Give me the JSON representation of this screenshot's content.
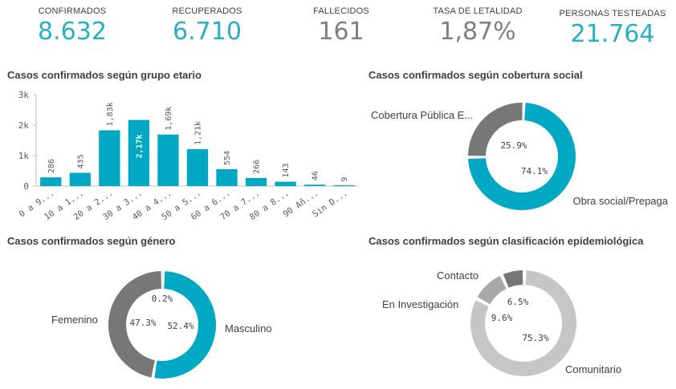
{
  "colors": {
    "teal": "#00a8c4",
    "gray_dark": "#777777",
    "gray_mid": "#a8a8a8",
    "gray_light": "#c6c6c6",
    "text": "#404040"
  },
  "kpis": [
    {
      "label": "CONFIRMADOS",
      "value": "8.632",
      "color": "#26b0c4"
    },
    {
      "label": "RECUPERADOS",
      "value": "6.710",
      "color": "#26b0c4"
    },
    {
      "label": "FALLECIDOS",
      "value": "161",
      "color": "#7f7f7f"
    },
    {
      "label": "TASA DE LETALIDAD",
      "value": "1,87%",
      "color": "#7f7f7f"
    },
    {
      "label": "PERSONAS TESTEADAS",
      "value": "21.764",
      "color": "#26b0c4"
    }
  ],
  "age_chart": {
    "title": "Casos confirmados según grupo etario",
    "chart_data": {
      "type": "bar",
      "categories": [
        "0 a 9...",
        "10 a 1...",
        "20 a 2...",
        "30 a 3...",
        "40 a 4...",
        "50 a 5...",
        "60 a 6...",
        "70 a 7...",
        "80 a 8...",
        "90 Añ...",
        "Sin D..."
      ],
      "values": [
        286,
        435,
        1830,
        2170,
        1690,
        1210,
        554,
        266,
        143,
        46,
        9
      ],
      "data_labels": [
        "286",
        "435",
        "1,83k",
        "2,17k",
        "1,69k",
        "1,21k",
        "554",
        "266",
        "143",
        "46",
        "9"
      ],
      "y_ticks": [
        "0",
        "1k",
        "2k",
        "3k"
      ],
      "ylim": [
        0,
        3000
      ],
      "grid": false
    }
  },
  "coverage_chart": {
    "title": "Casos confirmados según cobertura social",
    "chart_data": {
      "type": "pie",
      "donut": true,
      "slices": [
        {
          "label": "Obra social/Prepaga",
          "value": 74.1,
          "pct": "74.1%",
          "color": "#00a8c4"
        },
        {
          "label": "Cobertura Pública E...",
          "value": 25.9,
          "pct": "25.9%",
          "color": "#777777"
        }
      ]
    }
  },
  "gender_chart": {
    "title": "Casos confirmados según género",
    "chart_data": {
      "type": "pie",
      "donut": true,
      "slices": [
        {
          "label": "Masculino",
          "value": 52.4,
          "pct": "52.4%",
          "color": "#00a8c4"
        },
        {
          "label": "Femenino",
          "value": 47.3,
          "pct": "47.3%",
          "color": "#777777"
        },
        {
          "label": "",
          "value": 0.2,
          "pct": "0.2%",
          "color": "#c6c6c6"
        }
      ]
    }
  },
  "epi_chart": {
    "title": "Casos confirmados según clasificación epidemiológica",
    "chart_data": {
      "type": "pie",
      "donut": true,
      "slices": [
        {
          "label": "Comunitario",
          "value": 75.3,
          "pct": "75.3%",
          "color": "#c6c6c6"
        },
        {
          "label": "En Investigación",
          "value": 9.6,
          "pct": "9.6%",
          "color": "#a8a8a8"
        },
        {
          "label": "Contacto",
          "value": 6.5,
          "pct": "6.5%",
          "color": "#777777"
        }
      ]
    }
  }
}
